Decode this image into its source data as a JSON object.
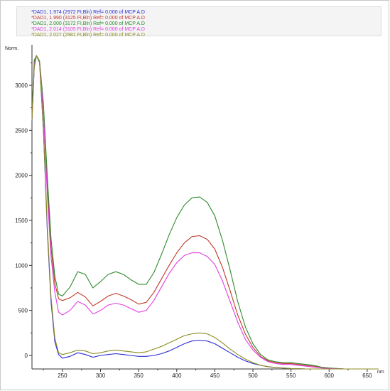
{
  "legend": [
    {
      "text": "*DAD1, 1.974 (2972 FI,Bln) Ref= 0.000 of MCP A.D",
      "color": "#2b2bd6"
    },
    {
      "text": "*DAD1, 1.990 (3125 FI,Bln) Ref= 0.000 of MCP A.D",
      "color": "#c0392b"
    },
    {
      "text": "*DAD1, 2.000 (3172 FI,Bln) Ref= 0.000 of MCP A.D",
      "color": "#2e8b2e"
    },
    {
      "text": "*DAD1, 2.014 (3105 FI,Bln) Ref= 0.000 of MCP A.D",
      "color": "#e040e0"
    },
    {
      "text": "*DAD1, 2.027 (2981 FI,Bln) Ref= 0.000 of MCP A.D",
      "color": "#8c8c20"
    }
  ],
  "chart_data": {
    "type": "line",
    "xlabel": "nm",
    "ylabel": "Norm.",
    "xlim": [
      210,
      665
    ],
    "ylim": [
      -150,
      3450
    ],
    "x_ticks": [
      250,
      300,
      350,
      400,
      450,
      500,
      550,
      600,
      650
    ],
    "y_ticks": [
      0,
      500,
      1000,
      1500,
      2000,
      2500,
      3000
    ],
    "grid": false,
    "series": [
      {
        "name": "*DAD1, 1.974 (2972 FI,Bln) Ref= 0.000 of MCP A.D",
        "color": "#2b2bd6",
        "x": [
          210,
          213,
          216,
          220,
          225,
          230,
          235,
          240,
          245,
          250,
          260,
          270,
          280,
          290,
          300,
          310,
          320,
          330,
          340,
          350,
          360,
          370,
          380,
          390,
          400,
          410,
          420,
          430,
          440,
          450,
          460,
          470,
          480,
          490,
          500,
          510,
          520,
          530,
          540,
          550,
          560,
          570,
          580,
          590,
          600,
          620,
          640,
          650,
          665
        ],
        "y": [
          2600,
          3200,
          3330,
          3250,
          2500,
          1400,
          600,
          150,
          10,
          -30,
          -10,
          30,
          10,
          -20,
          0,
          10,
          20,
          10,
          0,
          -10,
          -10,
          0,
          20,
          50,
          90,
          130,
          160,
          170,
          160,
          130,
          80,
          30,
          -20,
          -60,
          -90,
          -110,
          -125,
          -135,
          -140,
          -145,
          -148,
          -150,
          -150,
          -150,
          -150,
          -150,
          -150,
          -150,
          -150
        ]
      },
      {
        "name": "*DAD1, 1.990 (3125 FI,Bln) Ref= 0.000 of MCP A.D",
        "color": "#c0392b",
        "x": [
          210,
          213,
          216,
          220,
          225,
          230,
          235,
          240,
          245,
          250,
          260,
          270,
          280,
          290,
          300,
          310,
          320,
          330,
          340,
          350,
          360,
          370,
          380,
          390,
          400,
          410,
          420,
          430,
          440,
          450,
          460,
          470,
          480,
          490,
          500,
          510,
          520,
          530,
          540,
          550,
          560,
          570,
          580,
          590,
          600,
          620,
          640,
          650,
          665
        ],
        "y": [
          2650,
          3250,
          3330,
          3260,
          2750,
          1900,
          1200,
          800,
          630,
          610,
          640,
          700,
          650,
          550,
          600,
          660,
          690,
          660,
          620,
          570,
          590,
          700,
          850,
          1000,
          1140,
          1250,
          1320,
          1330,
          1290,
          1180,
          980,
          720,
          450,
          240,
          90,
          -10,
          -60,
          -80,
          -90,
          -90,
          -100,
          -110,
          -120,
          -130,
          -140,
          -150,
          -150,
          -150,
          -150
        ]
      },
      {
        "name": "*DAD1, 2.000 (3172 FI,Bln) Ref= 0.000 of MCP A.D",
        "color": "#2e8b2e",
        "x": [
          210,
          213,
          216,
          220,
          225,
          230,
          235,
          240,
          245,
          250,
          260,
          270,
          280,
          290,
          300,
          310,
          320,
          330,
          340,
          350,
          360,
          370,
          380,
          390,
          400,
          410,
          420,
          430,
          440,
          450,
          460,
          470,
          480,
          490,
          500,
          510,
          520,
          530,
          540,
          550,
          560,
          570,
          580,
          590,
          600,
          620,
          640,
          650,
          665
        ],
        "y": [
          2700,
          3280,
          3330,
          3270,
          2800,
          2000,
          1300,
          880,
          680,
          660,
          760,
          930,
          900,
          750,
          820,
          900,
          930,
          900,
          840,
          790,
          790,
          920,
          1120,
          1340,
          1530,
          1670,
          1750,
          1760,
          1700,
          1550,
          1280,
          950,
          600,
          320,
          130,
          10,
          -50,
          -70,
          -80,
          -80,
          -90,
          -100,
          -110,
          -130,
          -140,
          -150,
          -150,
          -150,
          -150
        ]
      },
      {
        "name": "*DAD1, 2.014 (3105 FI,Bln) Ref= 0.000 of MCP A.D",
        "color": "#e040e0",
        "x": [
          210,
          213,
          216,
          220,
          225,
          230,
          235,
          240,
          245,
          250,
          260,
          270,
          280,
          290,
          300,
          310,
          320,
          330,
          340,
          350,
          360,
          370,
          380,
          390,
          400,
          410,
          420,
          430,
          440,
          450,
          460,
          470,
          480,
          490,
          500,
          510,
          520,
          530,
          540,
          550,
          560,
          570,
          580,
          590,
          600,
          620,
          640,
          650,
          665
        ],
        "y": [
          2620,
          3230,
          3330,
          3250,
          2700,
          1800,
          1100,
          700,
          480,
          450,
          500,
          600,
          560,
          460,
          500,
          560,
          580,
          560,
          520,
          480,
          500,
          610,
          760,
          910,
          1030,
          1110,
          1140,
          1140,
          1100,
          1010,
          830,
          600,
          370,
          180,
          60,
          -20,
          -70,
          -90,
          -100,
          -100,
          -110,
          -120,
          -130,
          -140,
          -145,
          -150,
          -150,
          -150,
          -150
        ]
      },
      {
        "name": "*DAD1, 2.027 (2981 FI,Bln) Ref= 0.000 of MCP A.D",
        "color": "#8c8c20",
        "x": [
          210,
          213,
          216,
          220,
          225,
          230,
          235,
          240,
          245,
          250,
          260,
          270,
          280,
          290,
          300,
          310,
          320,
          330,
          340,
          350,
          360,
          370,
          380,
          390,
          400,
          410,
          420,
          430,
          440,
          450,
          460,
          470,
          480,
          490,
          500,
          510,
          520,
          530,
          540,
          550,
          560,
          570,
          580,
          590,
          600,
          620,
          640,
          650,
          665
        ],
        "y": [
          2610,
          3210,
          3330,
          3250,
          2520,
          1450,
          650,
          190,
          30,
          10,
          30,
          60,
          50,
          20,
          30,
          50,
          60,
          50,
          40,
          30,
          40,
          70,
          100,
          140,
          180,
          220,
          240,
          250,
          240,
          200,
          140,
          70,
          10,
          -40,
          -80,
          -110,
          -125,
          -135,
          -140,
          -145,
          -148,
          -150,
          -150,
          -150,
          -150,
          -150,
          -150,
          -150,
          -150
        ]
      }
    ]
  }
}
